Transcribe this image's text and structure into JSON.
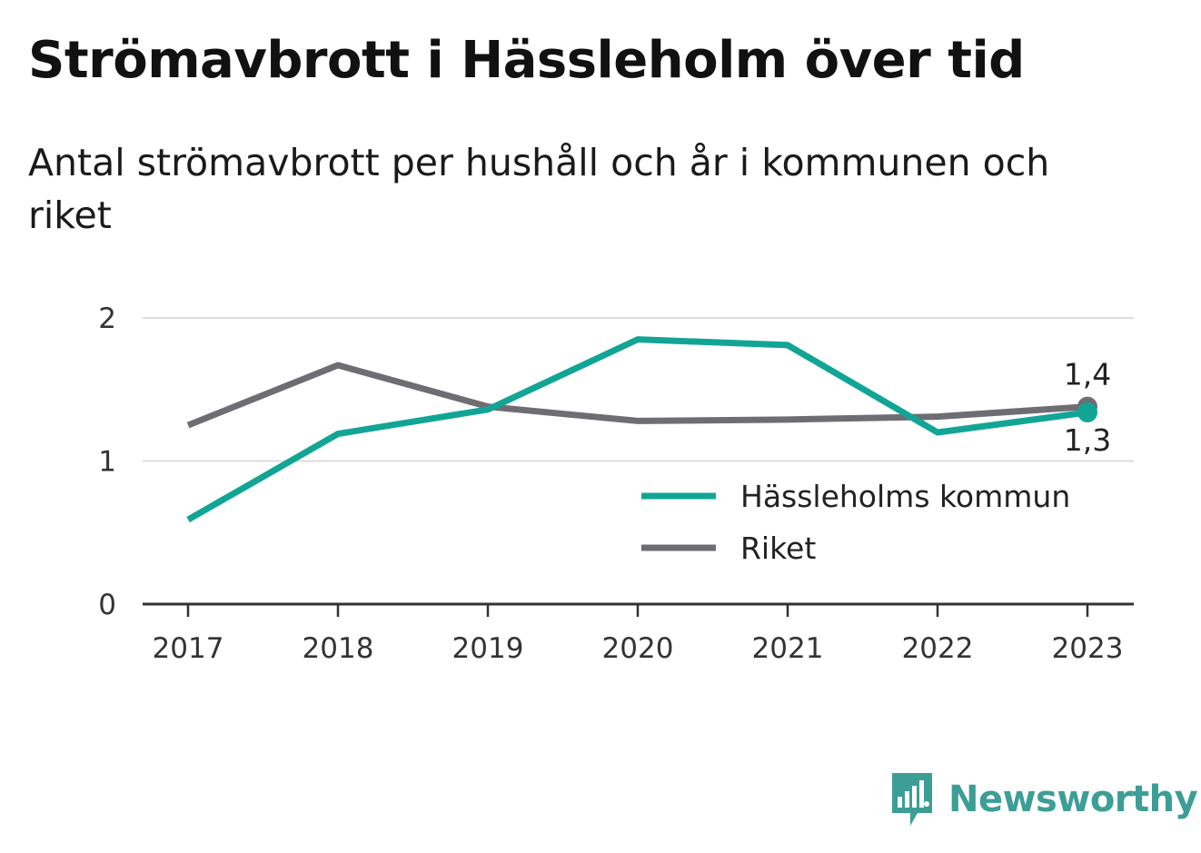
{
  "title": "Strömavbrott i Hässleholm över tid",
  "subtitle_line1": "Antal strömavbrott per hushåll och år i kommunen och",
  "subtitle_line2": "riket",
  "logo": {
    "text": "Newsworthy",
    "icon": "bar-chart-speech-bubble-icon",
    "color": "#3c9e96"
  },
  "chart_data": {
    "type": "line",
    "title": "Strömavbrott i Hässleholm över tid",
    "subtitle": "Antal strömavbrott per hushåll och år i kommunen och riket",
    "x": [
      "2017",
      "2018",
      "2019",
      "2020",
      "2021",
      "2022",
      "2023"
    ],
    "ylim": [
      0,
      2
    ],
    "yticks": [
      "0",
      "1",
      "2"
    ],
    "grid": true,
    "legend_position": "bottom-right",
    "series": [
      {
        "name": "Hässleholms kommun",
        "color": "#12a596",
        "values": [
          0.59,
          1.19,
          1.36,
          1.85,
          1.81,
          1.2,
          1.34
        ],
        "end_label": "1,3"
      },
      {
        "name": "Riket",
        "color": "#6e6d73",
        "values": [
          1.25,
          1.67,
          1.38,
          1.28,
          1.29,
          1.31,
          1.38
        ],
        "end_label": "1,4"
      }
    ]
  }
}
